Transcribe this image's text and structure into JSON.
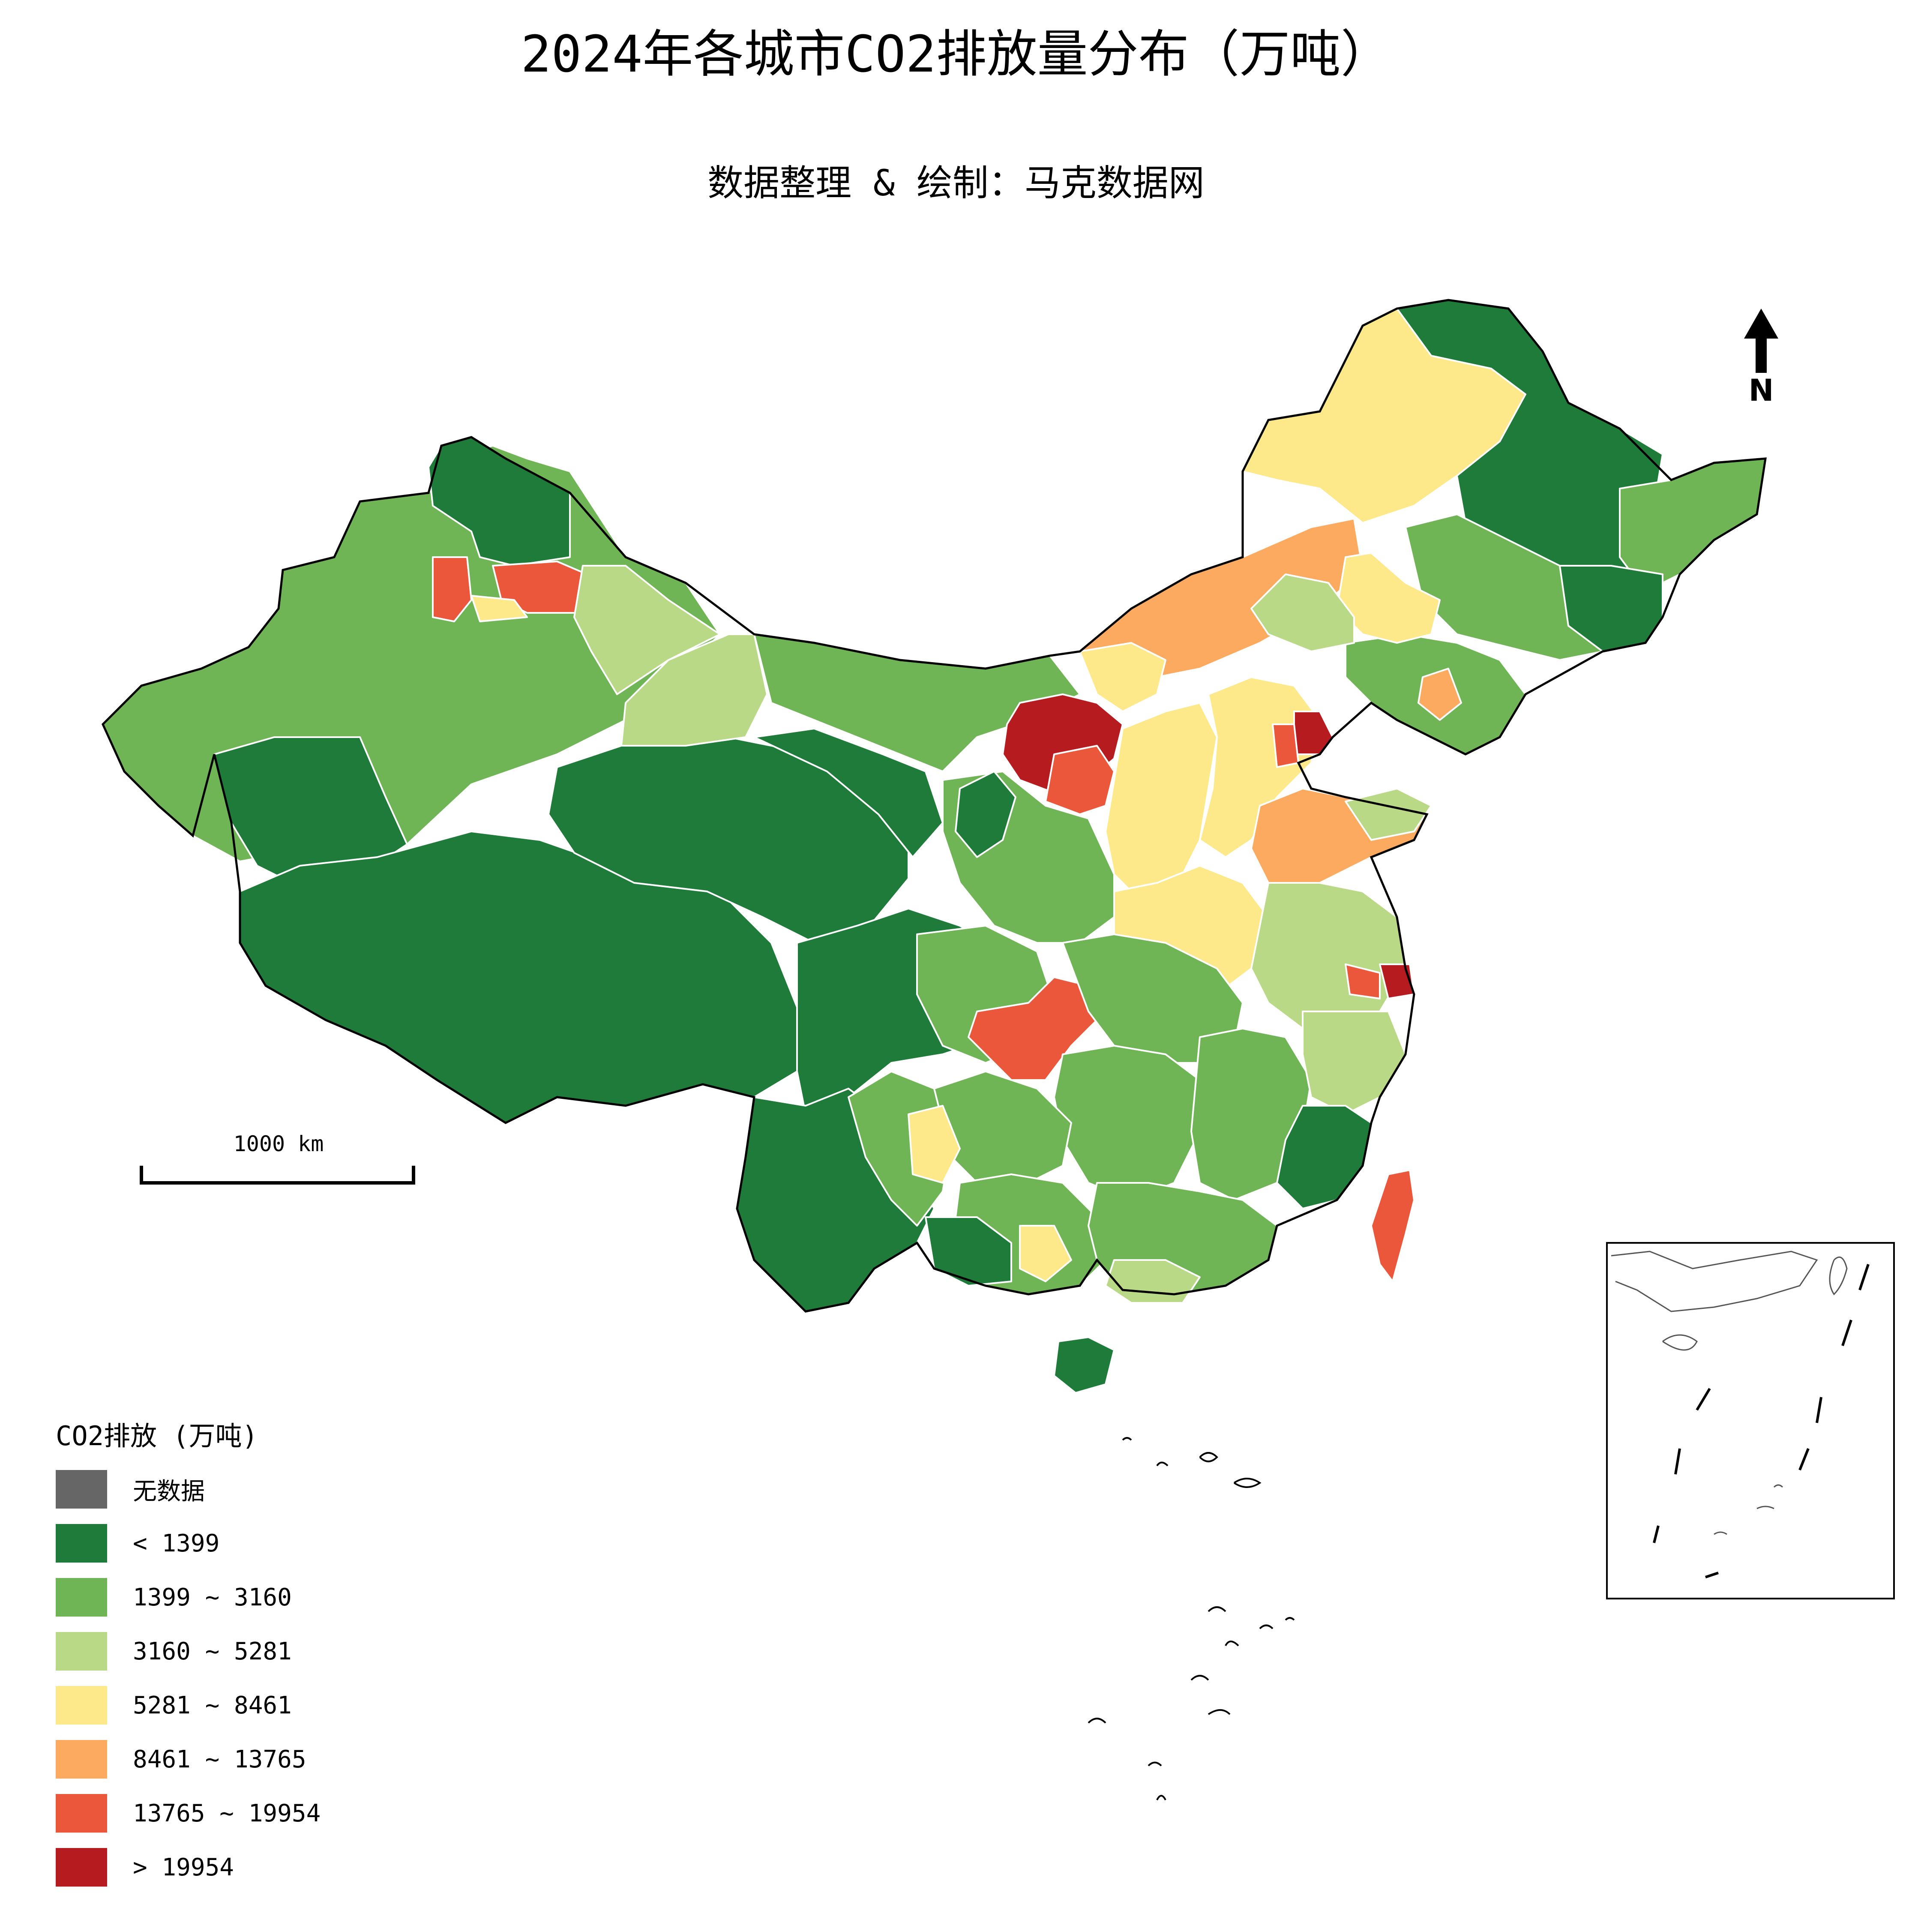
{
  "title": "2024年各城市CO2排放量分布（万吨）",
  "subtitle": "数据整理 & 绘制：马克数据网",
  "scale_bar": {
    "label": "1000 km"
  },
  "north_arrow": {
    "label": "N"
  },
  "legend": {
    "title": "CO2排放 (万吨)",
    "items": [
      {
        "label": "无数据",
        "color": "#666666"
      },
      {
        "label": "< 1399",
        "color": "#1e7b3a"
      },
      {
        "label": "1399 ~ 3160",
        "color": "#6fb556"
      },
      {
        "label": "3160 ~ 5281",
        "color": "#b9d986"
      },
      {
        "label": "5281 ~ 8461",
        "color": "#fde98a"
      },
      {
        "label": "8461 ~ 13765",
        "color": "#fcaa5f"
      },
      {
        "label": "13765 ~ 19954",
        "color": "#ea573b"
      },
      {
        "label": "> 19954",
        "color": "#b51b1f"
      }
    ]
  }
}
